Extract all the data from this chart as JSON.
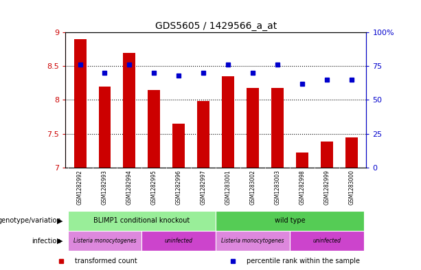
{
  "title": "GDS5605 / 1429566_a_at",
  "samples": [
    "GSM1282992",
    "GSM1282993",
    "GSM1282994",
    "GSM1282995",
    "GSM1282996",
    "GSM1282997",
    "GSM1283001",
    "GSM1283002",
    "GSM1283003",
    "GSM1282998",
    "GSM1282999",
    "GSM1283000"
  ],
  "bar_values": [
    8.9,
    8.2,
    8.7,
    8.15,
    7.65,
    7.98,
    8.35,
    8.18,
    8.18,
    7.22,
    7.38,
    7.44
  ],
  "dot_values": [
    76,
    70,
    76,
    70,
    68,
    70,
    76,
    70,
    76,
    62,
    65,
    65
  ],
  "ylim_left": [
    7,
    9
  ],
  "ylim_right": [
    0,
    100
  ],
  "yticks_left": [
    7,
    7.5,
    8,
    8.5,
    9
  ],
  "yticks_right": [
    0,
    25,
    50,
    75,
    100
  ],
  "bar_color": "#cc0000",
  "dot_color": "#0000cc",
  "bar_width": 0.5,
  "background_color": "#ffffff",
  "plot_bg_color": "#ffffff",
  "tick_area_color": "#c8c8c8",
  "genotype_groups": [
    {
      "text": "BLIMP1 conditional knockout",
      "start": 0,
      "end": 5,
      "color": "#99ee99"
    },
    {
      "text": "wild type",
      "start": 6,
      "end": 11,
      "color": "#55cc55"
    }
  ],
  "infection_groups": [
    {
      "text": "Listeria monocytogenes",
      "start": 0,
      "end": 2,
      "color": "#dd88dd"
    },
    {
      "text": "uninfected",
      "start": 3,
      "end": 5,
      "color": "#cc44cc"
    },
    {
      "text": "Listeria monocytogenes",
      "start": 6,
      "end": 8,
      "color": "#dd88dd"
    },
    {
      "text": "uninfected",
      "start": 9,
      "end": 11,
      "color": "#cc44cc"
    }
  ],
  "genotype_label": "genotype/variation",
  "infection_label": "infection",
  "legend_items": [
    {
      "label": "transformed count",
      "color": "#cc0000"
    },
    {
      "label": "percentile rank within the sample",
      "color": "#0000cc"
    }
  ]
}
